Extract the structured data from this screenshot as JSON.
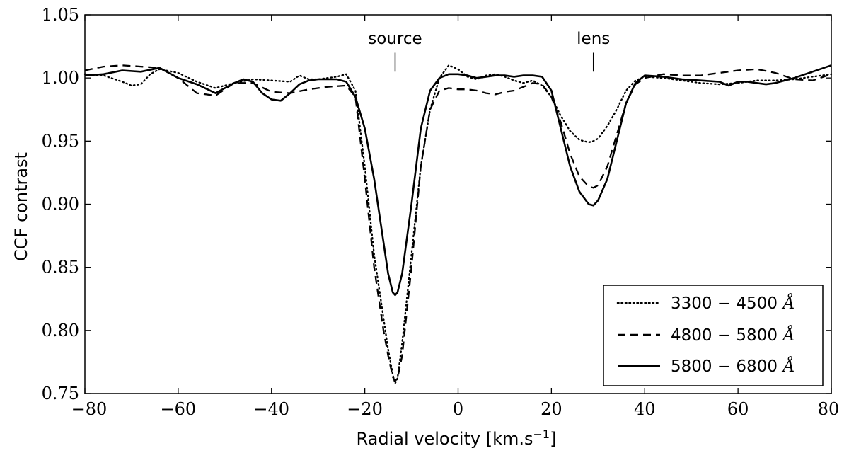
{
  "chart_data": {
    "type": "line",
    "xlabel": "Radial velocity [km.s",
    "xlabel_sup": "−1",
    "xlabel_close": "]",
    "ylabel": "CCF contrast",
    "xlim": [
      -80,
      80
    ],
    "ylim": [
      0.75,
      1.05
    ],
    "xticks": [
      -80,
      -60,
      -40,
      -20,
      0,
      20,
      40,
      60,
      80
    ],
    "xtick_labels": [
      "−80",
      "−60",
      "−40",
      "−20",
      "0",
      "20",
      "40",
      "60",
      "80"
    ],
    "yticks": [
      0.75,
      0.8,
      0.85,
      0.9,
      0.95,
      1.0,
      1.05
    ],
    "ytick_labels": [
      "0.75",
      "0.80",
      "0.85",
      "0.90",
      "0.95",
      "1.00",
      "1.05"
    ],
    "grid": false,
    "legend_position": "bottom-right",
    "annotations": [
      {
        "text": "source",
        "x": -13.5,
        "y_mark_top": 1.02,
        "y_mark_bottom": 1.005
      },
      {
        "text": "lens",
        "x": 29,
        "y_mark_top": 1.02,
        "y_mark_bottom": 1.005
      }
    ],
    "series": [
      {
        "name": "3300 − 4500",
        "unit": "Å",
        "style": "dotted",
        "x": [
          -80,
          -76,
          -72,
          -70,
          -68,
          -66,
          -64,
          -60,
          -56,
          -52,
          -48,
          -44,
          -40,
          -36,
          -34,
          -32,
          -30,
          -28,
          -26,
          -24,
          -22,
          -20,
          -18,
          -16,
          -15,
          -14,
          -13.5,
          -13,
          -12,
          -10,
          -8,
          -6,
          -4,
          -2,
          0,
          2,
          4,
          6,
          8,
          10,
          12,
          14,
          16,
          18,
          20,
          22,
          24,
          26,
          28,
          29,
          30,
          32,
          34,
          36,
          38,
          40,
          44,
          48,
          52,
          56,
          60,
          64,
          68,
          72,
          76,
          80
        ],
        "values": [
          1.003,
          1.002,
          0.997,
          0.994,
          0.995,
          1.003,
          1.007,
          1.004,
          0.997,
          0.992,
          0.996,
          0.999,
          0.998,
          0.997,
          1.002,
          0.999,
          0.999,
          1.0,
          1.001,
          1.003,
          0.99,
          0.93,
          0.86,
          0.81,
          0.785,
          0.765,
          0.758,
          0.762,
          0.79,
          0.86,
          0.93,
          0.975,
          1.0,
          1.01,
          1.007,
          1.001,
          0.999,
          1.002,
          1.003,
          1.001,
          0.998,
          0.996,
          0.998,
          0.994,
          0.985,
          0.97,
          0.958,
          0.951,
          0.949,
          0.95,
          0.952,
          0.962,
          0.975,
          0.99,
          0.998,
          1.001,
          1.0,
          0.998,
          0.996,
          0.995,
          0.996,
          0.998,
          0.998,
          0.999,
          1.001,
          1.003
        ]
      },
      {
        "name": "4800 − 5800",
        "unit": "Å",
        "style": "dashed",
        "x": [
          -80,
          -76,
          -72,
          -68,
          -64,
          -60,
          -56,
          -52,
          -48,
          -44,
          -40,
          -36,
          -32,
          -28,
          -24,
          -22,
          -20,
          -18,
          -16,
          -15,
          -14,
          -13.5,
          -13,
          -12,
          -10,
          -8,
          -6,
          -4,
          -2,
          0,
          2,
          4,
          6,
          8,
          10,
          12,
          14,
          16,
          18,
          20,
          22,
          24,
          26,
          28,
          29,
          30,
          32,
          34,
          36,
          38,
          40,
          44,
          48,
          52,
          56,
          60,
          64,
          68,
          72,
          76,
          80
        ],
        "values": [
          1.006,
          1.009,
          1.01,
          1.009,
          1.008,
          1.0,
          0.988,
          0.986,
          0.996,
          0.996,
          0.989,
          0.988,
          0.991,
          0.993,
          0.994,
          0.985,
          0.92,
          0.85,
          0.8,
          0.78,
          0.763,
          0.76,
          0.762,
          0.78,
          0.85,
          0.93,
          0.975,
          0.99,
          0.992,
          0.991,
          0.991,
          0.99,
          0.988,
          0.987,
          0.989,
          0.99,
          0.993,
          0.996,
          0.995,
          0.985,
          0.965,
          0.94,
          0.922,
          0.914,
          0.913,
          0.915,
          0.93,
          0.955,
          0.98,
          0.995,
          1.0,
          1.003,
          1.002,
          1.002,
          1.004,
          1.006,
          1.007,
          1.004,
          0.999,
          0.998,
          1.003
        ]
      },
      {
        "name": "5800 − 6800",
        "unit": "Å",
        "style": "solid",
        "x": [
          -80,
          -76,
          -72,
          -68,
          -64,
          -60,
          -56,
          -52,
          -48,
          -46,
          -44,
          -42,
          -40,
          -38,
          -36,
          -34,
          -32,
          -30,
          -28,
          -26,
          -24,
          -22,
          -20,
          -18,
          -16,
          -15,
          -14,
          -13.5,
          -13,
          -12,
          -10,
          -8,
          -6,
          -4,
          -2,
          0,
          2,
          4,
          6,
          8,
          10,
          12,
          14,
          16,
          18,
          20,
          22,
          24,
          26,
          28,
          29,
          30,
          32,
          34,
          36,
          38,
          40,
          44,
          48,
          52,
          56,
          58,
          60,
          62,
          64,
          66,
          68,
          72,
          76,
          80
        ],
        "values": [
          1.002,
          1.003,
          1.006,
          1.005,
          1.008,
          1.0,
          0.995,
          0.988,
          0.996,
          0.999,
          0.997,
          0.988,
          0.983,
          0.982,
          0.988,
          0.995,
          0.998,
          0.999,
          0.999,
          0.999,
          0.997,
          0.985,
          0.96,
          0.92,
          0.87,
          0.845,
          0.83,
          0.828,
          0.83,
          0.845,
          0.9,
          0.96,
          0.99,
          1.0,
          1.003,
          1.003,
          1.002,
          1.0,
          1.001,
          1.002,
          1.002,
          1.001,
          1.002,
          1.002,
          1.001,
          0.99,
          0.96,
          0.93,
          0.91,
          0.9,
          0.899,
          0.903,
          0.92,
          0.95,
          0.98,
          0.996,
          1.002,
          1.001,
          0.999,
          0.998,
          0.997,
          0.994,
          0.997,
          0.997,
          0.996,
          0.995,
          0.996,
          1.0,
          1.005,
          1.01
        ]
      }
    ]
  }
}
